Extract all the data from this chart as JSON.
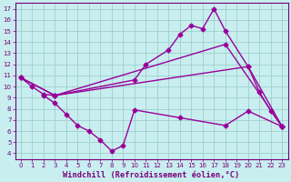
{
  "lines": [
    {
      "x": [
        0,
        1,
        2,
        3,
        10,
        11,
        13,
        14,
        15,
        16,
        17,
        18,
        20,
        21,
        22,
        23
      ],
      "y": [
        10.8,
        10.0,
        9.3,
        9.2,
        10.6,
        12.0,
        13.3,
        14.7,
        15.5,
        15.2,
        17.0,
        15.0,
        11.8,
        9.5,
        7.8,
        6.4
      ]
    },
    {
      "x": [
        0,
        3,
        18,
        23
      ],
      "y": [
        10.8,
        9.2,
        13.8,
        6.4
      ]
    },
    {
      "x": [
        0,
        3,
        20,
        23
      ],
      "y": [
        10.8,
        9.2,
        11.8,
        6.4
      ]
    },
    {
      "x": [
        2,
        3,
        4,
        5,
        6,
        7,
        8,
        9,
        10,
        14,
        18,
        20,
        23
      ],
      "y": [
        9.2,
        8.5,
        7.5,
        6.5,
        6.0,
        5.2,
        4.2,
        4.7,
        7.9,
        7.2,
        6.5,
        7.8,
        6.4
      ]
    }
  ],
  "line_color": "#990099",
  "marker": "D",
  "markersize": 2.5,
  "linewidth": 1.0,
  "bg_color": "#c8eef0",
  "grid_color": "#9ed0cc",
  "axis_color": "#770077",
  "text_color": "#770077",
  "xlabel": "Windchill (Refroidissement éolien,°C)",
  "xlim": [
    -0.5,
    23.5
  ],
  "ylim": [
    3.5,
    17.5
  ],
  "xticks": [
    0,
    1,
    2,
    3,
    4,
    5,
    6,
    7,
    8,
    9,
    10,
    11,
    12,
    13,
    14,
    15,
    16,
    17,
    18,
    19,
    20,
    21,
    22,
    23
  ],
  "yticks": [
    4,
    5,
    6,
    7,
    8,
    9,
    10,
    11,
    12,
    13,
    14,
    15,
    16,
    17
  ],
  "tick_fontsize": 5.0,
  "xlabel_fontsize": 6.2
}
